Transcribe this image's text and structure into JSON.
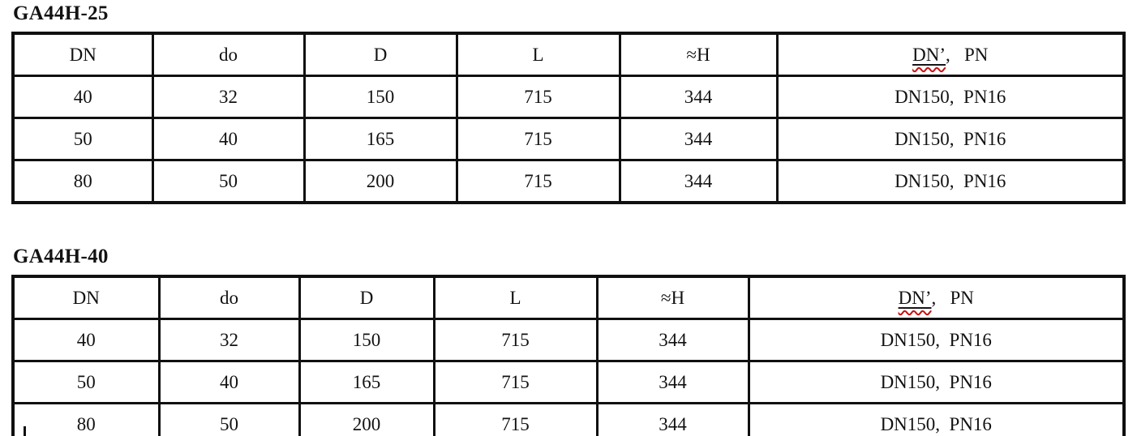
{
  "colors": {
    "text": "#121212",
    "border": "#101010",
    "squiggle_red": "#cb1010",
    "background": "#ffffff"
  },
  "tables": [
    {
      "title": "GA44H-25",
      "headers": [
        "DN",
        "do",
        "D",
        "L",
        "≈H"
      ],
      "header_last": {
        "marked": "DN’",
        "rest": ",   PN"
      },
      "rows": [
        [
          "40",
          "32",
          "150",
          "715",
          "344",
          "DN150,  PN16"
        ],
        [
          "50",
          "40",
          "165",
          "715",
          "344",
          "DN150,  PN16"
        ],
        [
          "80",
          "50",
          "200",
          "715",
          "344",
          "DN150,  PN16"
        ]
      ]
    },
    {
      "title": "GA44H-40",
      "headers": [
        "DN",
        "do",
        "D",
        "L",
        "≈H"
      ],
      "header_last": {
        "marked": "DN’",
        "rest": ",   PN"
      },
      "rows": [
        [
          "40",
          "32",
          "150",
          "715",
          "344",
          "DN150,  PN16"
        ],
        [
          "50",
          "40",
          "165",
          "715",
          "344",
          "DN150,  PN16"
        ],
        [
          "80",
          "50",
          "200",
          "715",
          "344",
          "DN150,  PN16"
        ]
      ]
    }
  ]
}
